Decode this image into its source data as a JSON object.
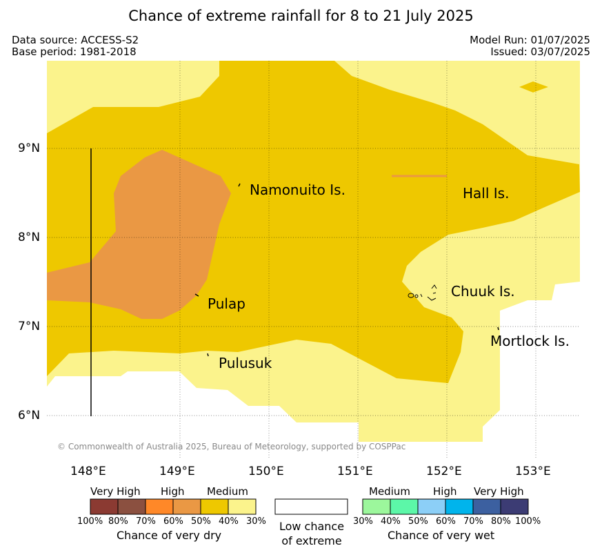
{
  "title": "Chance of extreme rainfall for 8 to 21 July 2025",
  "header": {
    "data_source": "Data source: ACCESS-S2",
    "base_period": "Base period: 1981-2018",
    "model_run": "Model Run: 01/07/2025",
    "issued": "Issued: 03/07/2025"
  },
  "map": {
    "lat_labels": [
      "9°N",
      "8°N",
      "7°N",
      "6°N"
    ],
    "lon_labels": [
      "148°E",
      "149°E",
      "150°E",
      "151°E",
      "152°E",
      "153°E"
    ],
    "places": [
      "Namonuito Is.",
      "Hall Is.",
      "Pulap",
      "Chuuk Is.",
      "Mortlock Is.",
      "Pulusuk"
    ],
    "copyright": "© Commonwealth of Australia 2025, Bureau of Meteorology, supported by COSPPac"
  },
  "legend": {
    "dry": {
      "categories": [
        "Very High",
        "High",
        "Medium"
      ],
      "percent_labels": [
        "100%",
        "80%",
        "70%",
        "60%",
        "50%",
        "40%",
        "30%"
      ],
      "colors": [
        "#8b3a32",
        "#8b5040",
        "#ff8828",
        "#ea9844",
        "#eec800",
        "#fbf38c"
      ],
      "title": "Chance of very dry"
    },
    "neutral": {
      "line1": "Low chance",
      "line2": "of extreme",
      "color": "#ffffff"
    },
    "wet": {
      "categories": [
        "Medium",
        "High",
        "Very High"
      ],
      "percent_labels": [
        "30%",
        "40%",
        "50%",
        "60%",
        "70%",
        "80%",
        "100%"
      ],
      "colors": [
        "#9cf79c",
        "#5cf7a8",
        "#8ccff7",
        "#00b4ec",
        "#3c60a0",
        "#3c3c74"
      ],
      "title": "Chance of very wet"
    }
  }
}
